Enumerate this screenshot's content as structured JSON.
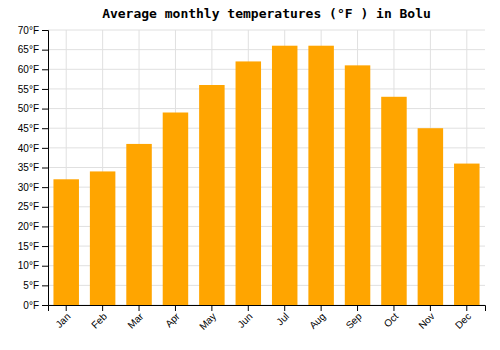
{
  "chart_data": {
    "type": "bar",
    "title": "Average monthly temperatures (°F ) in Bolu",
    "categories": [
      "Jan",
      "Feb",
      "Mar",
      "Apr",
      "May",
      "Jun",
      "Jul",
      "Aug",
      "Sep",
      "Oct",
      "Nov",
      "Dec"
    ],
    "values": [
      32,
      34,
      41,
      49,
      56,
      62,
      66,
      66,
      61,
      53,
      45,
      36
    ],
    "color": "#FFA500",
    "ylim": [
      0,
      70
    ],
    "yticks": [
      {
        "value": 0,
        "label": "0°F"
      },
      {
        "value": 5,
        "label": "5°F"
      },
      {
        "value": 10,
        "label": "10°F"
      },
      {
        "value": 15,
        "label": "15°F"
      },
      {
        "value": 20,
        "label": "20°F"
      },
      {
        "value": 25,
        "label": "25°F"
      },
      {
        "value": 30,
        "label": "30°F"
      },
      {
        "value": 35,
        "label": "35°F"
      },
      {
        "value": 40,
        "label": "40°F"
      },
      {
        "value": 45,
        "label": "45°F"
      },
      {
        "value": 50,
        "label": "50°F"
      },
      {
        "value": 55,
        "label": "55°F"
      },
      {
        "value": 60,
        "label": "60°F"
      },
      {
        "value": 65,
        "label": "65°F"
      },
      {
        "value": 70,
        "label": "70°F"
      }
    ],
    "grid": true
  }
}
